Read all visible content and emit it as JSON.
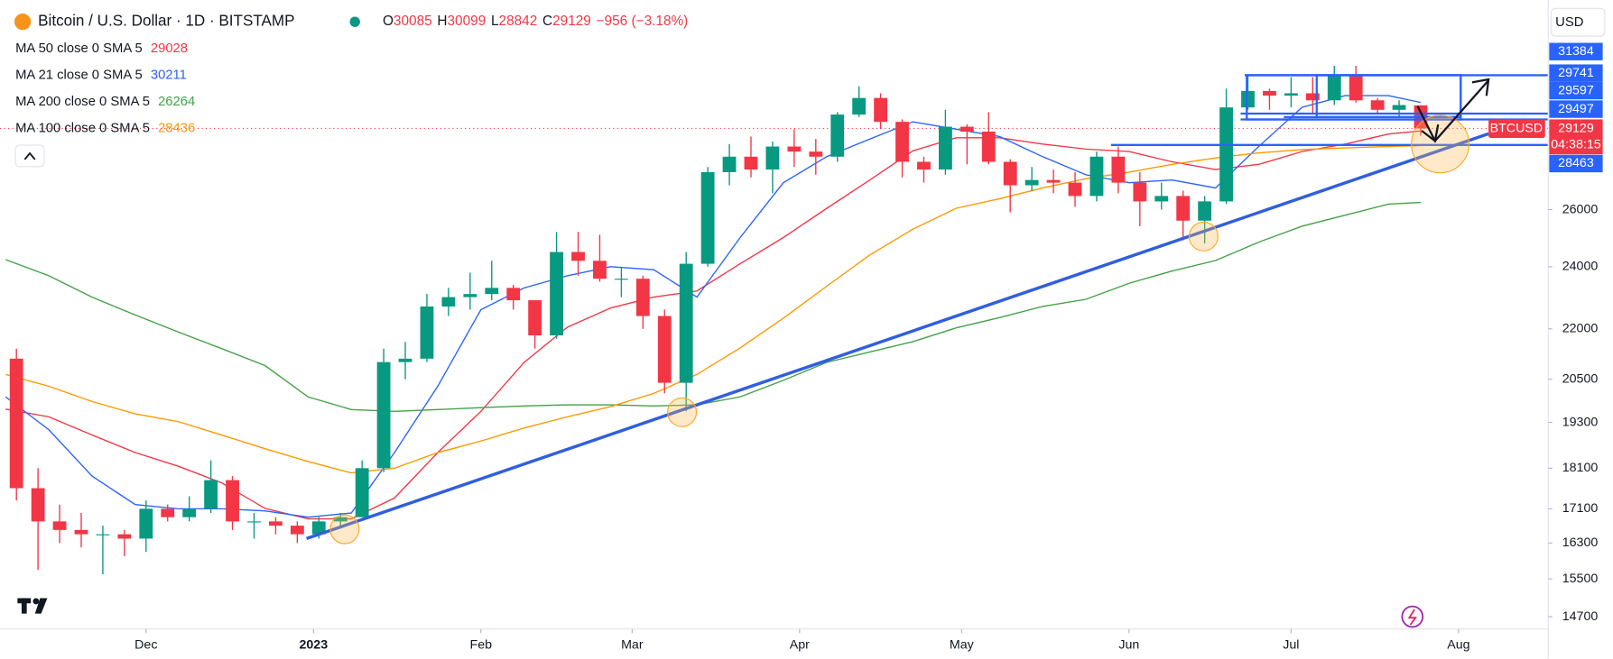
{
  "header": {
    "symbol": "Bitcoin / U.S. Dollar · 1D · BITSTAMP",
    "ohlc_prefixes": [
      "O",
      "H",
      "L",
      "C"
    ],
    "change": "−956 (−3.18%)",
    "currency": "USD"
  },
  "chart_data": {
    "type": "candlestick",
    "log_scale": true,
    "up_color": "#089981",
    "down_color": "#f23645",
    "candles": [
      [
        21100,
        21400,
        17300,
        17600
      ],
      [
        17600,
        18100,
        15700,
        16800
      ],
      [
        16800,
        17200,
        16300,
        16600
      ],
      [
        16600,
        17000,
        16200,
        16500
      ],
      [
        16500,
        16700,
        15600,
        16500
      ],
      [
        16500,
        16600,
        16000,
        16400
      ],
      [
        16400,
        17300,
        16100,
        17100
      ],
      [
        17100,
        17200,
        16800,
        16900
      ],
      [
        16900,
        17400,
        16800,
        17100
      ],
      [
        17100,
        18300,
        17000,
        17800
      ],
      [
        17800,
        17900,
        16600,
        16800
      ],
      [
        16800,
        17000,
        16400,
        16800
      ],
      [
        16800,
        16900,
        16500,
        16700
      ],
      [
        16700,
        16800,
        16300,
        16500
      ],
      [
        16500,
        16900,
        16400,
        16800
      ],
      [
        16800,
        17000,
        16700,
        16900
      ],
      [
        16900,
        18300,
        16900,
        18100
      ],
      [
        18100,
        21400,
        18000,
        21000
      ],
      [
        21000,
        21600,
        20500,
        21100
      ],
      [
        21100,
        23100,
        21000,
        22700
      ],
      [
        22700,
        23300,
        22400,
        23000
      ],
      [
        23000,
        23800,
        22600,
        23100
      ],
      [
        23100,
        24200,
        22900,
        23300
      ],
      [
        23300,
        23400,
        22600,
        22900
      ],
      [
        22900,
        22900,
        21400,
        21800
      ],
      [
        21800,
        25200,
        21700,
        24500
      ],
      [
        24500,
        25200,
        23700,
        24200
      ],
      [
        24200,
        25100,
        23500,
        23600
      ],
      [
        23600,
        24000,
        23000,
        23600
      ],
      [
        23600,
        23700,
        22000,
        22400
      ],
      [
        22400,
        22600,
        20100,
        20400
      ],
      [
        20400,
        24500,
        19600,
        24100
      ],
      [
        24100,
        27600,
        24000,
        27400
      ],
      [
        27400,
        28500,
        26900,
        28000
      ],
      [
        28000,
        28800,
        27200,
        27500
      ],
      [
        27500,
        28600,
        26600,
        28400
      ],
      [
        28400,
        29100,
        27600,
        28200
      ],
      [
        28200,
        28700,
        27300,
        28000
      ],
      [
        28000,
        29800,
        27800,
        29700
      ],
      [
        29700,
        30900,
        29600,
        30400
      ],
      [
        30400,
        30600,
        29100,
        29400
      ],
      [
        29400,
        29500,
        27200,
        27800
      ],
      [
        27800,
        28000,
        27000,
        27500
      ],
      [
        27500,
        29900,
        27300,
        29200
      ],
      [
        29200,
        29300,
        27700,
        29000
      ],
      [
        29000,
        29800,
        27700,
        27800
      ],
      [
        27800,
        27900,
        25900,
        26900
      ],
      [
        26900,
        27600,
        26700,
        27100
      ],
      [
        27100,
        27500,
        26600,
        27000
      ],
      [
        27000,
        27400,
        26100,
        26500
      ],
      [
        26500,
        28200,
        26300,
        28000
      ],
      [
        28000,
        28400,
        26600,
        27000
      ],
      [
        27000,
        27400,
        25400,
        26300
      ],
      [
        26300,
        27000,
        26000,
        26500
      ],
      [
        26500,
        26700,
        24900,
        25600
      ],
      [
        25600,
        26500,
        24800,
        26300
      ],
      [
        26300,
        30800,
        26200,
        30000
      ],
      [
        30000,
        31400,
        29900,
        30700
      ],
      [
        30700,
        30800,
        29900,
        30500
      ],
      [
        30500,
        31300,
        30000,
        30600
      ],
      [
        30600,
        31300,
        29700,
        30300
      ],
      [
        30300,
        31800,
        30100,
        31400
      ],
      [
        31400,
        31800,
        30200,
        30300
      ],
      [
        30300,
        30400,
        29700,
        29900
      ],
      [
        29900,
        30300,
        29600,
        30100
      ],
      [
        30085,
        30099,
        28842,
        29129
      ]
    ],
    "line_x": [
      0,
      2,
      4,
      6,
      8,
      10,
      12,
      14,
      16,
      18,
      20,
      22,
      24,
      26,
      28,
      30,
      32,
      34,
      36,
      38,
      40,
      42,
      44,
      46,
      48,
      50,
      52,
      54,
      56,
      58,
      60,
      62,
      64,
      65.5
    ],
    "series": [
      {
        "name": "MA 50 close 0 SMA 5",
        "color": "#f23645",
        "values": [
          19660,
          19450,
          18960,
          18500,
          18150,
          17730,
          17110,
          16860,
          16860,
          17360,
          18500,
          19600,
          20990,
          22050,
          22650,
          23000,
          23200,
          24100,
          25000,
          26040,
          27100,
          28230,
          28750,
          28750,
          28500,
          28300,
          28200,
          27800,
          27500,
          27700,
          28200,
          28500,
          28900,
          29028
        ]
      },
      {
        "name": "MA 21 close 0 SMA 5",
        "color": "#2962ff",
        "values": [
          20000,
          19100,
          17900,
          17200,
          17100,
          17100,
          17050,
          16900,
          17000,
          18500,
          20300,
          22600,
          23300,
          23700,
          24000,
          23900,
          23000,
          25000,
          27000,
          28000,
          28700,
          29400,
          29100,
          28800,
          28000,
          27300,
          27000,
          27100,
          26800,
          28400,
          30000,
          30500,
          30500,
          30211
        ]
      },
      {
        "name": "MA 200 close 0 SMA 5",
        "color": "#43a047",
        "values": [
          24240,
          23700,
          23000,
          22430,
          21900,
          21400,
          20900,
          20000,
          19650,
          19600,
          19650,
          19700,
          19750,
          19780,
          19780,
          19750,
          19780,
          20000,
          20470,
          20990,
          21300,
          21610,
          22030,
          22350,
          22700,
          22930,
          23450,
          23860,
          24210,
          24840,
          25400,
          25800,
          26200,
          26264
        ]
      },
      {
        "name": "MA 100 close 0 SMA 5",
        "color": "#ff9800",
        "values": [
          20640,
          20300,
          19870,
          19530,
          19320,
          18960,
          18600,
          18270,
          17980,
          18100,
          18500,
          18800,
          19150,
          19450,
          19730,
          20100,
          20640,
          21420,
          22330,
          23350,
          24400,
          25300,
          26050,
          26400,
          26800,
          27150,
          27400,
          27700,
          27950,
          28150,
          28280,
          28350,
          28400,
          28436
        ]
      }
    ],
    "xlim": [
      -0.26,
      71.4
    ],
    "xticks": [
      {
        "value": 6.5,
        "label": "Dec"
      },
      {
        "value": 14.25,
        "label": "2023"
      },
      {
        "value": 22,
        "label": "Feb"
      },
      {
        "value": 29,
        "label": "Mar"
      },
      {
        "value": 36.75,
        "label": "Apr"
      },
      {
        "value": 44.25,
        "label": "May"
      },
      {
        "value": 52,
        "label": "Jun"
      },
      {
        "value": 59.5,
        "label": "Jul"
      },
      {
        "value": 67.25,
        "label": "Aug"
      }
    ],
    "ylim": [
      14450,
      34860
    ],
    "yticks": [
      26000,
      24000,
      22000,
      20500,
      19300,
      18100,
      17100,
      16300,
      15500,
      14700
    ],
    "price_lines": [
      {
        "value": 31384,
        "color": "#2962ff"
      },
      {
        "value": 29741,
        "color": "#2962ff"
      },
      {
        "value": 29597,
        "color": "#2962ff"
      },
      {
        "value": 29497,
        "color": "#2962ff"
      },
      {
        "value": 28463,
        "color": "#2962ff"
      }
    ],
    "symbol_tag": "BTCUSD",
    "countdown": "04:38:15"
  }
}
